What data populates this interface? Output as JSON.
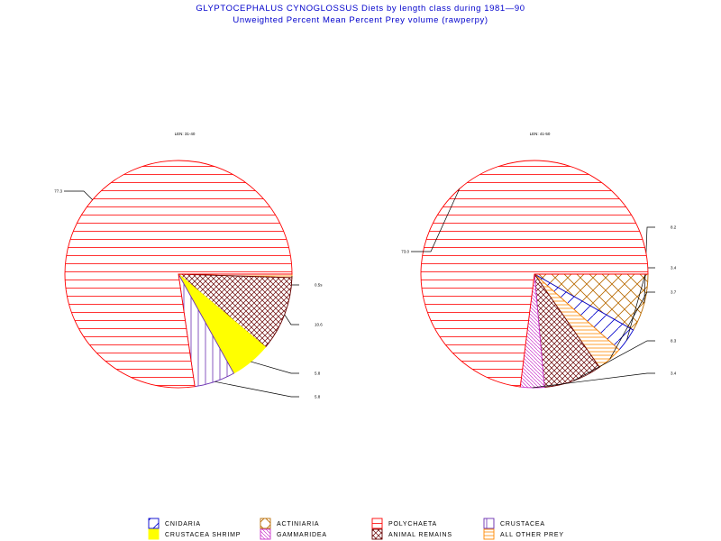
{
  "header": {
    "title": "GLYPTOCEPHALUS CYNOGLOSSUS Diets by length class during 1981—90",
    "subtitle": "Unweighted Percent Mean Percent Prey  volume (rawperpy)"
  },
  "chart_data": [
    {
      "type": "pie",
      "title": "LEN: 31-40",
      "slices": [
        {
          "category": "ALL OTHER PREY",
          "value": 0.5,
          "label": "0.5s"
        },
        {
          "category": "ANIMAL REMAINS",
          "value": 10.6,
          "label": "10.6"
        },
        {
          "category": "CRUSTACEA SHRIMP",
          "value": 5.8,
          "label": "5.8"
        },
        {
          "category": "CRUSTACEA",
          "value": 5.8,
          "label": "5.8"
        },
        {
          "category": "POLYCHAETA",
          "value": 77.3,
          "label": "77.3"
        }
      ]
    },
    {
      "type": "pie",
      "title": "LEN: 41-50",
      "slices": [
        {
          "category": "ACTINIARIA",
          "value": 8.2,
          "label": "8.2"
        },
        {
          "category": "CNIDARIA",
          "value": 3.4,
          "label": "3.4"
        },
        {
          "category": "ALL OTHER PREY",
          "value": 3.7,
          "label": "3.7"
        },
        {
          "category": "ANIMAL REMAINS",
          "value": 8.3,
          "label": "8.3"
        },
        {
          "category": "GAMMARIDEA",
          "value": 3.4,
          "label": "3.4"
        },
        {
          "category": "POLYCHAETA",
          "value": 73.0,
          "label": "73.0"
        }
      ]
    }
  ],
  "legend": [
    {
      "label": "CNIDARIA",
      "pattern": "cnidaria",
      "color": "#0000cc"
    },
    {
      "label": "ACTINIARIA",
      "pattern": "actiniaria",
      "color": "#b86a00"
    },
    {
      "label": "POLYCHAETA",
      "pattern": "polychaeta",
      "color": "#ff0000"
    },
    {
      "label": "CRUSTACEA",
      "pattern": "crustacea",
      "color": "#6a2fb0"
    },
    {
      "label": "CRUSTACEA SHRIMP",
      "pattern": "shrimp",
      "color": "#ffff00"
    },
    {
      "label": "GAMMARIDEA",
      "pattern": "gammaridea",
      "color": "#cc33cc"
    },
    {
      "label": "ANIMAL REMAINS",
      "pattern": "remains",
      "color": "#660000"
    },
    {
      "label": "ALL OTHER PREY",
      "pattern": "other",
      "color": "#ff8800"
    }
  ]
}
